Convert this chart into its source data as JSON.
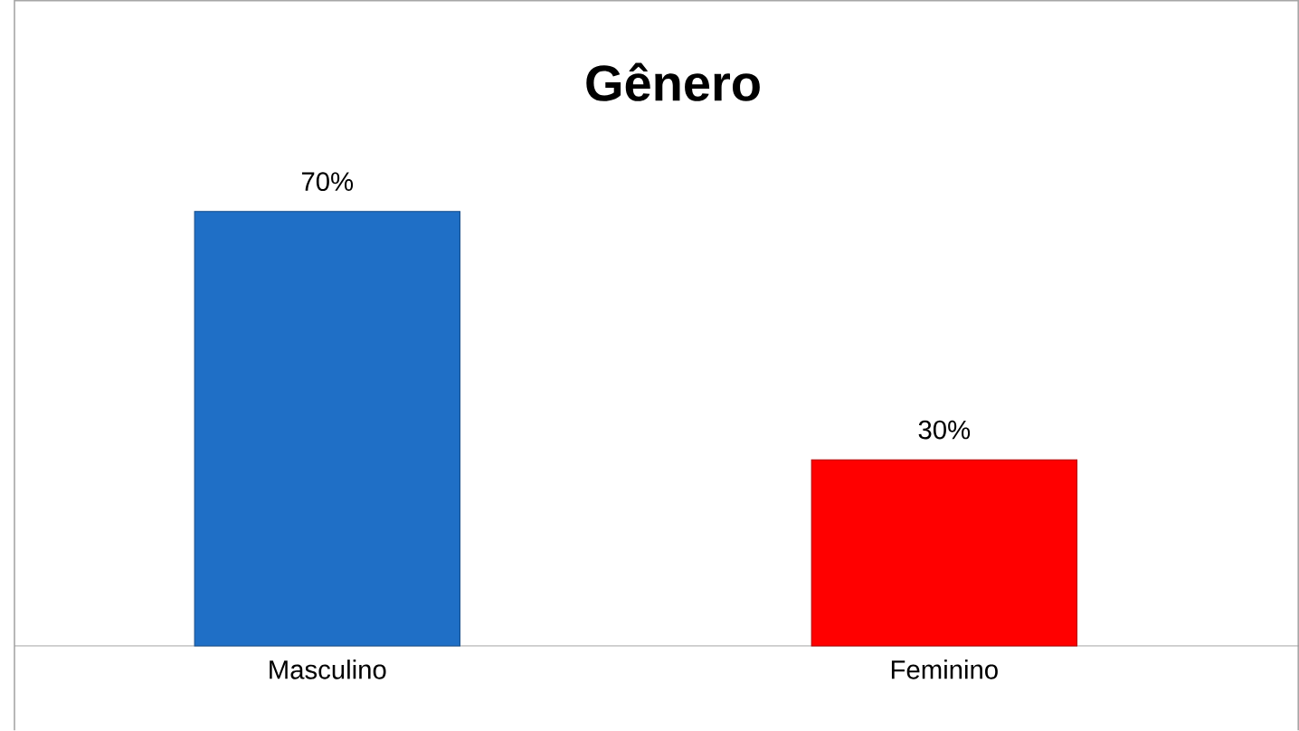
{
  "chart_data": {
    "type": "bar",
    "title": "Gênero",
    "categories": [
      "Masculino",
      "Feminino"
    ],
    "values": [
      70,
      30
    ],
    "value_labels": [
      "70%",
      "30%"
    ],
    "colors": [
      "#1f6fc6",
      "#ff0000"
    ]
  }
}
